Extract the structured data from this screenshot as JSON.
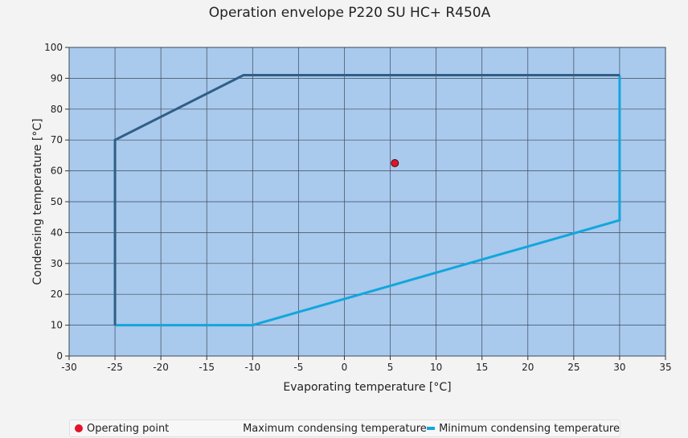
{
  "chart_data": {
    "type": "line",
    "title": "Operation envelope P220 SU HC+ R450A",
    "xlabel": "Evaporating temperature [°C]",
    "ylabel": "Condensing temperature [°C]",
    "xlim": [
      -30,
      35
    ],
    "ylim": [
      0,
      100
    ],
    "xticks": [
      -30,
      -25,
      -20,
      -15,
      -10,
      -5,
      0,
      5,
      10,
      15,
      20,
      25,
      30,
      35
    ],
    "yticks": [
      0,
      10,
      20,
      30,
      40,
      50,
      60,
      70,
      80,
      90,
      100
    ],
    "grid": true,
    "legend_position": "bottom",
    "plot_background": "#a9c9ed",
    "series": [
      {
        "name": "Operating point",
        "kind": "scatter",
        "color": "#e3132b",
        "points": [
          [
            5.5,
            62.5
          ]
        ]
      },
      {
        "name": "Maximum condensing temperature",
        "kind": "line",
        "color": "#2f5f86",
        "points": [
          [
            -25,
            10
          ],
          [
            -25,
            70
          ],
          [
            -11,
            91
          ],
          [
            30,
            91
          ]
        ]
      },
      {
        "name": "Minimum condensing temperature",
        "kind": "line",
        "color": "#12a6dc",
        "points": [
          [
            -25,
            10
          ],
          [
            -10,
            10
          ],
          [
            30,
            44
          ],
          [
            30,
            91
          ]
        ]
      }
    ]
  }
}
